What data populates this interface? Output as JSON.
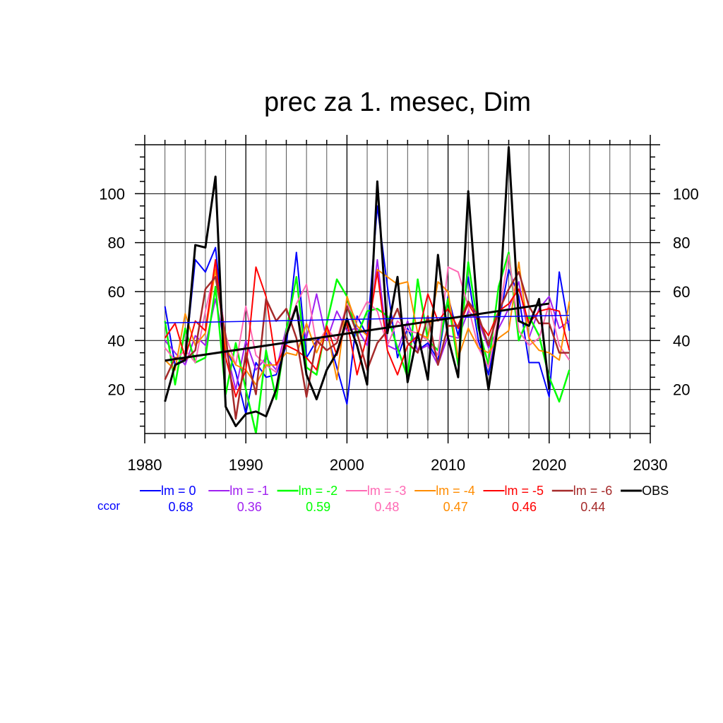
{
  "chart_data": {
    "type": "line",
    "title": "prec za 1. mesec, Dim",
    "xlabel": "",
    "ylabel": "",
    "xlim": [
      1980,
      2030
    ],
    "ylim": [
      2,
      120
    ],
    "x_ticks": [
      1980,
      1990,
      2000,
      2010,
      2020,
      2030
    ],
    "y_ticks": [
      20,
      40,
      60,
      80,
      100
    ],
    "grid": true,
    "legend_position": "bottom",
    "ccor_label": "ccor",
    "x": [
      1982,
      1983,
      1984,
      1985,
      1986,
      1987,
      1988,
      1989,
      1990,
      1991,
      1992,
      1993,
      1994,
      1995,
      1996,
      1997,
      1998,
      1999,
      2000,
      2001,
      2002,
      2003,
      2004,
      2005,
      2006,
      2007,
      2008,
      2009,
      2010,
      2011,
      2012,
      2013,
      2014,
      2015,
      2016,
      2017,
      2018,
      2019,
      2020,
      2021,
      2022
    ],
    "series": [
      {
        "name": "lm = 0",
        "ccor": "0.68",
        "color": "#0000ff",
        "width": 2,
        "values": [
          54,
          30,
          33,
          73,
          68,
          78,
          38,
          27,
          10,
          31,
          25,
          26,
          38,
          76,
          33,
          40,
          43,
          29,
          14,
          50,
          42,
          95,
          62,
          33,
          45,
          36,
          39,
          32,
          58,
          42,
          66,
          40,
          26,
          47,
          69,
          58,
          31,
          31,
          17,
          68,
          44
        ]
      },
      {
        "name": "lm = -1",
        "ccor": "0.36",
        "color": "#a020f0",
        "width": 2,
        "values": [
          40,
          35,
          30,
          42,
          38,
          57,
          37,
          20,
          40,
          28,
          33,
          28,
          45,
          53,
          41,
          59,
          40,
          52,
          44,
          45,
          38,
          73,
          38,
          36,
          48,
          36,
          38,
          30,
          42,
          41,
          52,
          48,
          37,
          45,
          53,
          64,
          41,
          53,
          58,
          45,
          48
        ]
      },
      {
        "name": "lm = -2",
        "ccor": "0.59",
        "color": "#00ff00",
        "width": 2.5,
        "values": [
          48,
          22,
          45,
          31,
          33,
          62,
          18,
          39,
          20,
          2,
          36,
          16,
          44,
          66,
          29,
          26,
          47,
          65,
          58,
          42,
          52,
          53,
          50,
          37,
          25,
          65,
          40,
          36,
          57,
          30,
          72,
          45,
          30,
          62,
          76,
          40,
          50,
          42,
          25,
          15,
          28
        ]
      },
      {
        "name": "lm = -3",
        "ccor": "0.48",
        "color": "#ff69b4",
        "width": 2,
        "values": [
          37,
          32,
          36,
          31,
          52,
          70,
          42,
          30,
          54,
          34,
          30,
          27,
          43,
          55,
          63,
          38,
          45,
          40,
          55,
          48,
          56,
          52,
          38,
          48,
          44,
          43,
          40,
          34,
          70,
          68,
          54,
          37,
          29,
          50,
          75,
          44,
          38,
          41,
          55,
          38,
          32
        ]
      },
      {
        "name": "lm = -4",
        "ccor": "0.47",
        "color": "#ff8c00",
        "width": 2,
        "values": [
          32,
          28,
          51,
          38,
          43,
          69,
          37,
          30,
          28,
          22,
          30,
          30,
          35,
          34,
          47,
          35,
          45,
          24,
          58,
          46,
          42,
          69,
          66,
          63,
          64,
          43,
          41,
          64,
          60,
          33,
          45,
          37,
          35,
          41,
          44,
          72,
          41,
          36,
          35,
          32,
          56
        ]
      },
      {
        "name": "lm = -5",
        "ccor": "0.46",
        "color": "#ff0000",
        "width": 2,
        "values": [
          41,
          47,
          33,
          48,
          44,
          73,
          33,
          17,
          28,
          70,
          58,
          30,
          38,
          36,
          33,
          28,
          46,
          34,
          48,
          26,
          42,
          68,
          36,
          26,
          38,
          42,
          59,
          48,
          53,
          45,
          55,
          48,
          42,
          52,
          55,
          61,
          47,
          52,
          53,
          52,
          36
        ]
      },
      {
        "name": "lm = -6",
        "ccor": "0.44",
        "color": "#a52a2a",
        "width": 2.5,
        "values": [
          24,
          33,
          32,
          36,
          61,
          66,
          42,
          8,
          35,
          18,
          57,
          48,
          53,
          41,
          17,
          40,
          36,
          39,
          54,
          43,
          28,
          39,
          44,
          53,
          39,
          35,
          50,
          30,
          46,
          46,
          56,
          50,
          38,
          52,
          61,
          68,
          54,
          47,
          47,
          35,
          35
        ]
      },
      {
        "name": "OBS",
        "ccor": "",
        "color": "#000000",
        "width": 3,
        "values": [
          15,
          30,
          32,
          79,
          78,
          107,
          13,
          5,
          10,
          11,
          9,
          20,
          42,
          54,
          26,
          16,
          28,
          35,
          49,
          38,
          22,
          105,
          43,
          66,
          23,
          43,
          24,
          75,
          41,
          25,
          101,
          47,
          20,
          48,
          119,
          48,
          46,
          57,
          20,
          null,
          null
        ]
      }
    ],
    "trend_lines": [
      {
        "color": "#0000ff",
        "width": 1.5,
        "x": [
          1982,
          2022
        ],
        "y": [
          47.2,
          50.3
        ]
      },
      {
        "color": "#000000",
        "width": 3,
        "x": [
          1982,
          2020
        ],
        "y": [
          31.8,
          55.1
        ]
      }
    ]
  }
}
